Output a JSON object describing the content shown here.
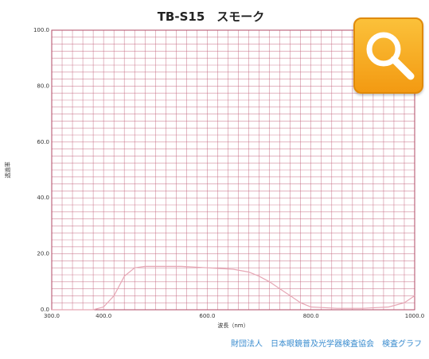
{
  "title": "TB-S15　スモーク",
  "footer": "財団法人　日本眼鏡普及光学器検査協会　検査グラフ",
  "zoom_button": {
    "icon": "magnifier-icon",
    "color": "#f5a623"
  },
  "chart_data": {
    "type": "line",
    "title": "TB-S15　スモーク",
    "xlabel": "波長（nm）",
    "ylabel": "透過率",
    "xlim": [
      300,
      1000
    ],
    "ylim": [
      0,
      100
    ],
    "x_ticks": [
      300,
      400,
      600,
      800,
      1000
    ],
    "x_tick_labels": [
      "300.0",
      "400.0",
      "600.0",
      "800.0",
      "1000.0"
    ],
    "y_ticks": [
      0,
      20,
      40,
      60,
      80,
      100
    ],
    "y_tick_labels": [
      "0.0",
      "20.0",
      "40.0",
      "60.0",
      "80.0",
      "100.0"
    ],
    "grid": true,
    "line_color": "#e6a6b4",
    "grid_color": "#c2607a",
    "series": [
      {
        "x": [
          300,
          380,
          400,
          420,
          440,
          460,
          480,
          500,
          550,
          600,
          650,
          680,
          700,
          720,
          740,
          760,
          780,
          800,
          850,
          900,
          950,
          980,
          1000
        ],
        "values": [
          0,
          0,
          1,
          5,
          12,
          15,
          15.5,
          15.5,
          15.5,
          15,
          14.5,
          13.5,
          12,
          10,
          7.5,
          5,
          2.5,
          1,
          0.5,
          0.5,
          1,
          2.5,
          5
        ]
      }
    ]
  }
}
